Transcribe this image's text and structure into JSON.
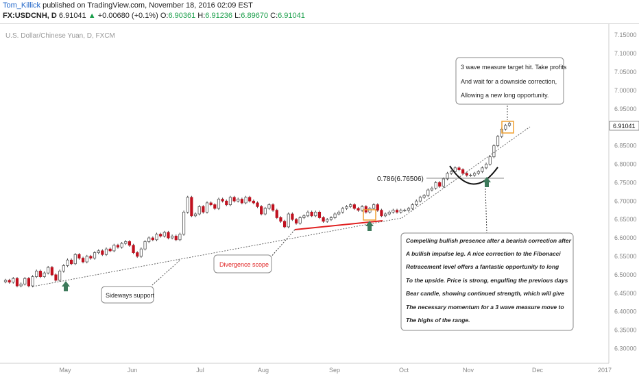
{
  "header": {
    "author": "Tom_Killick",
    "published_text": " published on TradingView.com, November 18, 2016 02:09 EST",
    "symbol": "FX:USDCNH, D",
    "last": "6.91041",
    "change": "+0.00680 (+0.1%)",
    "o_label": "O:",
    "o_value": "6.90361",
    "h_label": "H:",
    "h_value": "6.91236",
    "l_label": "L:",
    "l_value": "6.89670",
    "c_label": "C:",
    "c_value": "6.91041"
  },
  "chart_data": {
    "type": "candlestick",
    "title": "U.S. Dollar/Chinese Yuan, D, FXCM",
    "ylim": [
      6.26,
      7.18
    ],
    "y_ticks": [
      "7.15000",
      "7.10000",
      "7.05000",
      "7.00000",
      "6.95000",
      "6.90000",
      "6.85000",
      "6.80000",
      "6.75000",
      "6.70000",
      "6.65000",
      "6.60000",
      "6.55000",
      "6.50000",
      "6.45000",
      "6.40000",
      "6.35000",
      "6.30000"
    ],
    "x_ticks": [
      "May",
      "Jun",
      "Jul",
      "Aug",
      "Sep",
      "Oct",
      "Nov",
      "Dec",
      "2017"
    ],
    "last_price_label": "6.91041",
    "fib_label": "0.786(6.76506)",
    "fib_level": 6.76506,
    "closes": [
      6.485,
      6.48,
      6.49,
      6.47,
      6.475,
      6.49,
      6.47,
      6.495,
      6.51,
      6.495,
      6.505,
      6.52,
      6.5,
      6.485,
      6.51,
      6.525,
      6.54,
      6.53,
      6.555,
      6.545,
      6.535,
      6.55,
      6.545,
      6.56,
      6.565,
      6.555,
      6.57,
      6.565,
      6.58,
      6.575,
      6.585,
      6.59,
      6.58,
      6.56,
      6.55,
      6.57,
      6.59,
      6.6,
      6.595,
      6.61,
      6.605,
      6.615,
      6.6,
      6.605,
      6.595,
      6.61,
      6.67,
      6.71,
      6.66,
      6.665,
      6.685,
      6.67,
      6.695,
      6.69,
      6.68,
      6.705,
      6.7,
      6.69,
      6.71,
      6.7,
      6.705,
      6.695,
      6.71,
      6.7,
      6.695,
      6.685,
      6.665,
      6.68,
      6.69,
      6.675,
      6.655,
      6.645,
      6.63,
      6.665,
      6.65,
      6.64,
      6.655,
      6.66,
      6.67,
      6.66,
      6.67,
      6.655,
      6.645,
      6.65,
      6.655,
      6.665,
      6.67,
      6.68,
      6.685,
      6.69,
      6.68,
      6.675,
      6.685,
      6.67,
      6.68,
      6.69,
      6.675,
      6.66,
      6.665,
      6.67,
      6.675,
      6.67,
      6.675,
      6.675,
      6.68,
      6.69,
      6.7,
      6.71,
      6.715,
      6.73,
      6.735,
      6.75,
      6.74,
      6.76,
      6.775,
      6.78,
      6.79,
      6.785,
      6.775,
      6.77,
      6.77,
      6.775,
      6.78,
      6.79,
      6.8,
      6.82,
      6.85,
      6.875,
      6.895,
      6.905,
      6.91041
    ],
    "series": [
      {
        "name": "price",
        "values": []
      }
    ]
  },
  "annotations": {
    "target_box_1": "3 wave measure target hit. Take profits",
    "target_box_2": "And wait for a downside correction,",
    "target_box_3": "Allowing a new long opportunity.",
    "sideways": "Sideways support",
    "divergence": "Divergence scope",
    "big_1": "Compelling bullish presence after a bearish correction after",
    "big_2": "A bullish impulse leg. A nice correction to the Fibonacci",
    "big_3": "Retracement level offers a fantastic opportunity to long",
    "big_4": "To the upside. Price is strong, engulfing the previous days",
    "big_5": "Bear candle, showing continued strength, which will give",
    "big_6": "The necessary momentum for a 3 wave measure move to",
    "big_7": "The highs of the range."
  },
  "colors": {
    "up": "#ffffff",
    "down": "#c0111f",
    "wick": "#444444",
    "axis_text": "#888888",
    "arrow": "#3d7a5b",
    "red_line": "#e02020",
    "orange_box": "#f0a030"
  }
}
